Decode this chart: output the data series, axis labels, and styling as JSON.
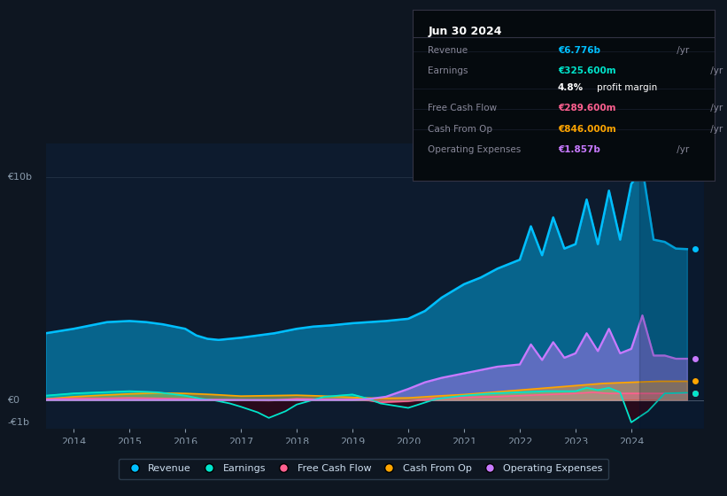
{
  "bg_color": "#0e1621",
  "chart_bg": "#0d1b2e",
  "title": "Jun 30 2024",
  "table_rows": [
    {
      "label": "Revenue",
      "value": "€6.776b",
      "unit": " /yr",
      "value_color": "#00bfff"
    },
    {
      "label": "Earnings",
      "value": "€325.600m",
      "unit": " /yr",
      "value_color": "#00e5cc"
    },
    {
      "label": "",
      "value": "4.8%",
      "unit": " profit margin",
      "value_color": "#ffffff"
    },
    {
      "label": "Free Cash Flow",
      "value": "€289.600m",
      "unit": " /yr",
      "value_color": "#ff6090"
    },
    {
      "label": "Cash From Op",
      "value": "€846.000m",
      "unit": " /yr",
      "value_color": "#ffa500"
    },
    {
      "label": "Operating Expenses",
      "value": "€1.857b",
      "unit": " /yr",
      "value_color": "#c87aff"
    }
  ],
  "ylabel_top": "€10b",
  "ylabel_zero": "€0",
  "ylabel_neg": "-€1b",
  "ylim_min": -1.3,
  "ylim_max": 11.5,
  "y_zero": 0.0,
  "y_top": 10.0,
  "y_neg": -1.0,
  "xlim_min": 2013.5,
  "xlim_max": 2025.3,
  "xticks": [
    2014,
    2015,
    2016,
    2017,
    2018,
    2019,
    2020,
    2021,
    2022,
    2023,
    2024
  ],
  "revenue_color": "#00bfff",
  "earnings_color": "#00e5cc",
  "fcf_color": "#ff6090",
  "cashop_color": "#ffa500",
  "opex_color": "#c87aff",
  "legend_entries": [
    "Revenue",
    "Earnings",
    "Free Cash Flow",
    "Cash From Op",
    "Operating Expenses"
  ],
  "legend_colors": [
    "#00bfff",
    "#00e5cc",
    "#ff6090",
    "#ffa500",
    "#c87aff"
  ],
  "revenue_x": [
    2013.5,
    2014.0,
    2014.3,
    2014.6,
    2015.0,
    2015.3,
    2015.6,
    2016.0,
    2016.2,
    2016.4,
    2016.6,
    2017.0,
    2017.3,
    2017.6,
    2018.0,
    2018.3,
    2018.6,
    2019.0,
    2019.3,
    2019.6,
    2020.0,
    2020.3,
    2020.6,
    2021.0,
    2021.3,
    2021.6,
    2022.0,
    2022.2,
    2022.4,
    2022.6,
    2022.8,
    2023.0,
    2023.2,
    2023.4,
    2023.6,
    2023.8,
    2024.0,
    2024.2,
    2024.4,
    2024.6,
    2024.8,
    2025.0
  ],
  "revenue_y": [
    3.0,
    3.2,
    3.35,
    3.5,
    3.55,
    3.5,
    3.4,
    3.2,
    2.9,
    2.75,
    2.7,
    2.8,
    2.9,
    3.0,
    3.2,
    3.3,
    3.35,
    3.45,
    3.5,
    3.55,
    3.65,
    4.0,
    4.6,
    5.2,
    5.5,
    5.9,
    6.3,
    7.8,
    6.5,
    8.2,
    6.8,
    7.0,
    9.0,
    7.0,
    9.4,
    7.2,
    9.7,
    10.4,
    7.2,
    7.1,
    6.8,
    6.776
  ],
  "earnings_x": [
    2013.5,
    2014.0,
    2014.5,
    2015.0,
    2015.5,
    2016.0,
    2016.3,
    2016.5,
    2016.8,
    2017.0,
    2017.3,
    2017.5,
    2017.8,
    2018.0,
    2018.5,
    2019.0,
    2019.3,
    2019.5,
    2020.0,
    2020.5,
    2021.0,
    2021.5,
    2022.0,
    2022.5,
    2023.0,
    2023.2,
    2023.4,
    2023.6,
    2023.8,
    2024.0,
    2024.3,
    2024.6,
    2025.0
  ],
  "earnings_y": [
    0.2,
    0.3,
    0.35,
    0.4,
    0.35,
    0.2,
    0.05,
    0.0,
    -0.15,
    -0.3,
    -0.55,
    -0.8,
    -0.5,
    -0.2,
    0.15,
    0.25,
    0.05,
    -0.15,
    -0.35,
    0.05,
    0.2,
    0.3,
    0.35,
    0.4,
    0.4,
    0.55,
    0.45,
    0.55,
    0.35,
    -1.0,
    -0.5,
    0.3,
    0.325
  ],
  "fcf_x": [
    2013.5,
    2014.0,
    2014.5,
    2015.0,
    2015.5,
    2016.0,
    2016.5,
    2017.0,
    2017.5,
    2018.0,
    2018.5,
    2019.0,
    2019.3,
    2019.5,
    2020.0,
    2020.5,
    2021.0,
    2021.5,
    2022.0,
    2022.5,
    2023.0,
    2023.3,
    2023.6,
    2024.0,
    2024.5,
    2025.0
  ],
  "fcf_y": [
    0.05,
    0.08,
    0.08,
    0.1,
    0.08,
    0.06,
    0.02,
    0.0,
    -0.02,
    0.06,
    0.04,
    0.04,
    -0.02,
    -0.1,
    -0.05,
    0.08,
    0.12,
    0.15,
    0.2,
    0.25,
    0.3,
    0.35,
    0.3,
    0.3,
    0.3,
    0.29
  ],
  "cashop_x": [
    2013.5,
    2014.0,
    2014.5,
    2015.0,
    2015.5,
    2016.0,
    2016.5,
    2017.0,
    2017.5,
    2018.0,
    2018.5,
    2019.0,
    2019.5,
    2020.0,
    2020.5,
    2021.0,
    2021.5,
    2022.0,
    2022.5,
    2023.0,
    2023.5,
    2024.0,
    2024.5,
    2025.0
  ],
  "cashop_y": [
    0.05,
    0.15,
    0.22,
    0.28,
    0.32,
    0.3,
    0.25,
    0.18,
    0.2,
    0.22,
    0.18,
    0.12,
    0.08,
    0.1,
    0.18,
    0.25,
    0.35,
    0.45,
    0.55,
    0.65,
    0.75,
    0.8,
    0.846,
    0.846
  ],
  "opex_x": [
    2013.5,
    2014.0,
    2014.5,
    2015.0,
    2015.5,
    2016.0,
    2016.5,
    2017.0,
    2017.5,
    2018.0,
    2018.5,
    2019.0,
    2019.3,
    2019.6,
    2020.0,
    2020.3,
    2020.6,
    2021.0,
    2021.3,
    2021.6,
    2022.0,
    2022.2,
    2022.4,
    2022.6,
    2022.8,
    2023.0,
    2023.2,
    2023.4,
    2023.6,
    2023.8,
    2024.0,
    2024.2,
    2024.4,
    2024.6,
    2024.8,
    2025.0
  ],
  "opex_y": [
    0.0,
    0.0,
    0.0,
    0.0,
    0.0,
    0.0,
    0.0,
    0.0,
    0.0,
    0.0,
    0.0,
    0.0,
    0.05,
    0.15,
    0.5,
    0.8,
    1.0,
    1.2,
    1.35,
    1.5,
    1.6,
    2.5,
    1.8,
    2.6,
    1.9,
    2.1,
    3.0,
    2.2,
    3.2,
    2.1,
    2.3,
    3.8,
    2.0,
    2.0,
    1.857,
    1.857
  ]
}
